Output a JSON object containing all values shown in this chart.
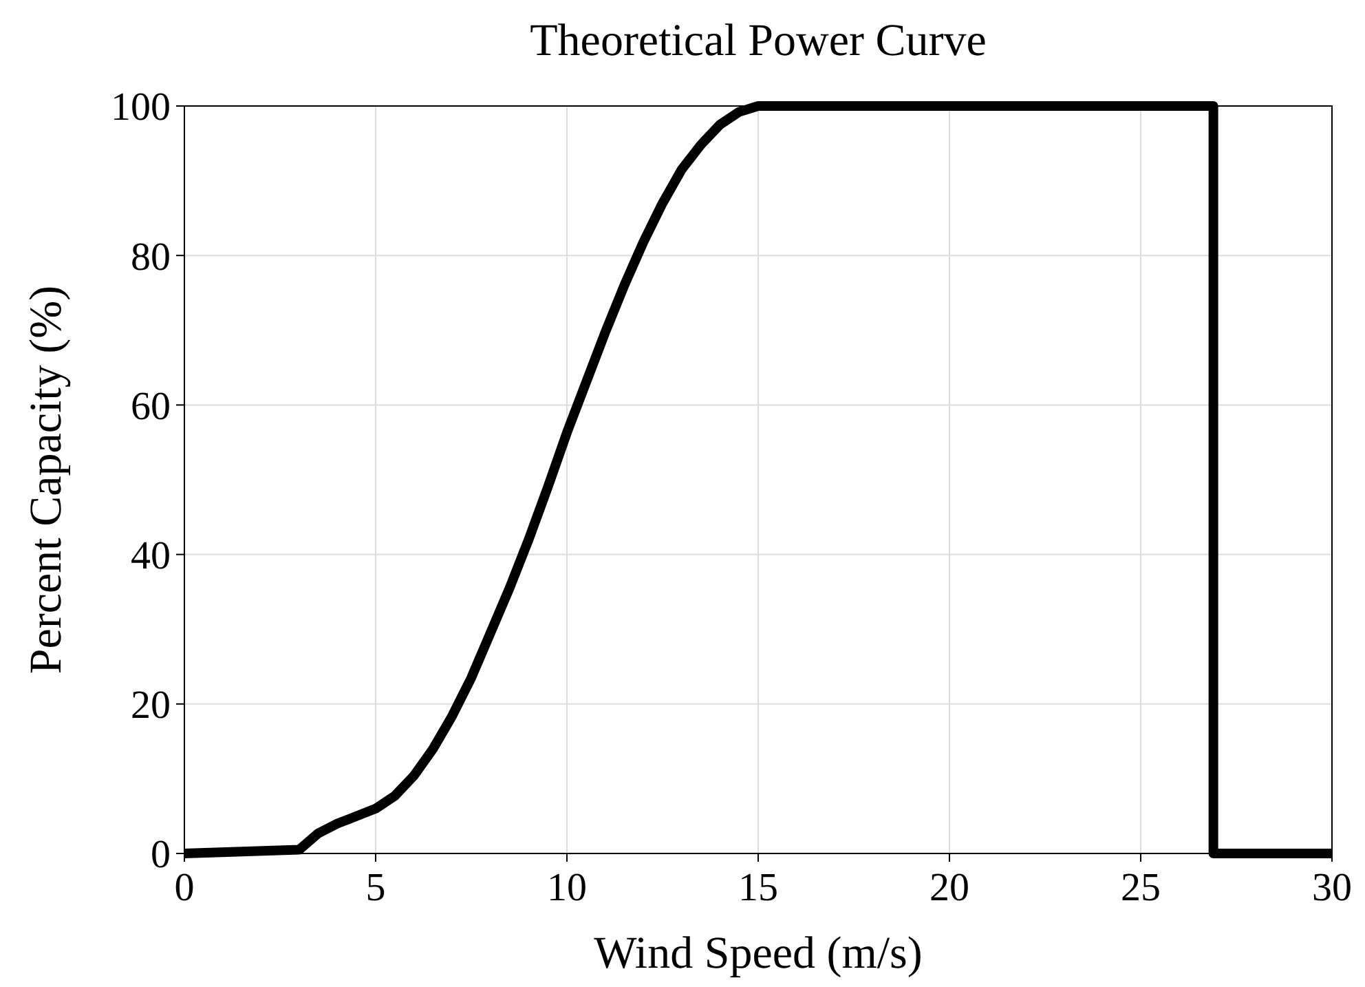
{
  "chart_data": {
    "type": "line",
    "title": "Theoretical Power Curve",
    "xlabel": "Wind Speed (m/s)",
    "ylabel": "Percent Capacity (%)",
    "x": [
      0,
      3,
      3.5,
      4,
      5,
      5.5,
      6,
      6.5,
      7,
      7.5,
      8,
      8.5,
      9,
      9.5,
      10,
      10.5,
      11,
      11.5,
      12,
      12.5,
      13,
      13.5,
      14,
      14.5,
      15,
      26.9,
      26.9,
      30
    ],
    "series": [
      {
        "color": "#000000",
        "values": [
          0,
          0.5,
          2.7,
          4,
          6,
          7.7,
          10.4,
          14,
          18.4,
          23.5,
          29.5,
          35.5,
          42,
          49,
          56.3,
          63,
          69.7,
          76,
          81.8,
          87,
          91.5,
          94.8,
          97.5,
          99.2,
          100,
          100,
          0,
          0
        ]
      }
    ],
    "xlim": [
      0,
      30
    ],
    "xticks": [
      0,
      5,
      10,
      15,
      20,
      25,
      30
    ],
    "ylim": [
      0,
      100
    ],
    "yticks": [
      0,
      20,
      40,
      60,
      80,
      100
    ],
    "grid": true,
    "line_style": "solid",
    "marker": "none"
  }
}
